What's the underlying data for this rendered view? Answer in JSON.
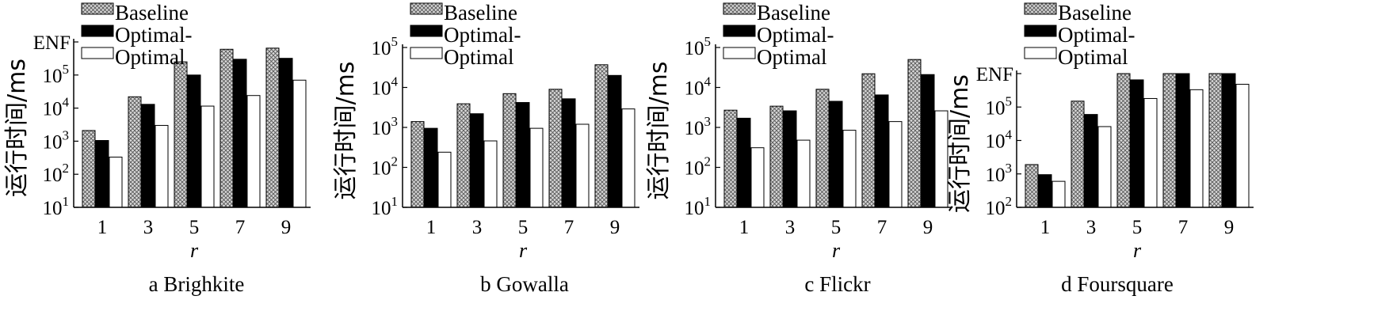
{
  "colors": {
    "baseline_fill": "#d9d9d9",
    "optimal_minus_fill": "#000000",
    "optimal_fill": "#ffffff",
    "axis": "#000000"
  },
  "legend_labels": [
    "Baseline",
    "Optimal-",
    "Optimal"
  ],
  "enf_label": "ENF",
  "chart_data": [
    {
      "type": "bar",
      "yscale": "log",
      "caption": "a Brighkite",
      "xlabel": "r",
      "ylabel": "运行时间/ms",
      "ylim": [
        10,
        1000000
      ],
      "yticks": [
        10,
        100,
        1000,
        10000,
        100000
      ],
      "ytick_labels": [
        [
          "10",
          "1"
        ],
        [
          "10",
          "2"
        ],
        [
          "10",
          "3"
        ],
        [
          "10",
          "4"
        ],
        [
          "10",
          "5"
        ]
      ],
      "enf_value": 1000000,
      "categories": [
        "1",
        "3",
        "5",
        "7",
        "9"
      ],
      "series": [
        {
          "name": "Baseline",
          "values": [
            2100,
            22000,
            250000,
            600000,
            650000
          ]
        },
        {
          "name": "Optimal-",
          "values": [
            1050,
            13000,
            100000,
            300000,
            320000
          ]
        },
        {
          "name": "Optimal",
          "values": [
            330,
            3000,
            11500,
            24000,
            70000
          ]
        }
      ],
      "grid": false,
      "legend": "top-left"
    },
    {
      "type": "bar",
      "yscale": "log",
      "caption": "b Gowalla",
      "xlabel": "r",
      "ylabel": "运行时间/ms",
      "ylim": [
        10,
        100000
      ],
      "yticks": [
        10,
        100,
        1000,
        10000,
        100000
      ],
      "ytick_labels": [
        [
          "10",
          "1"
        ],
        [
          "10",
          "2"
        ],
        [
          "10",
          "3"
        ],
        [
          "10",
          "4"
        ],
        [
          "10",
          "5"
        ]
      ],
      "categories": [
        "1",
        "3",
        "5",
        "7",
        "9"
      ],
      "series": [
        {
          "name": "Baseline",
          "values": [
            1400,
            3900,
            7000,
            9000,
            37000
          ]
        },
        {
          "name": "Optimal-",
          "values": [
            950,
            2200,
            4200,
            5200,
            20000
          ]
        },
        {
          "name": "Optimal",
          "values": [
            240,
            460,
            950,
            1200,
            2900
          ]
        }
      ],
      "grid": false,
      "legend": "top"
    },
    {
      "type": "bar",
      "yscale": "log",
      "caption": "c Flickr",
      "xlabel": "r",
      "ylabel": "运行时间/ms",
      "ylim": [
        10,
        100000
      ],
      "yticks": [
        10,
        100,
        1000,
        10000,
        100000
      ],
      "ytick_labels": [
        [
          "10",
          "1"
        ],
        [
          "10",
          "2"
        ],
        [
          "10",
          "3"
        ],
        [
          "10",
          "4"
        ],
        [
          "10",
          "5"
        ]
      ],
      "categories": [
        "1",
        "3",
        "5",
        "7",
        "9"
      ],
      "series": [
        {
          "name": "Baseline",
          "values": [
            2700,
            3400,
            9000,
            22000,
            50000
          ]
        },
        {
          "name": "Optimal-",
          "values": [
            1700,
            2600,
            4500,
            6500,
            21000
          ]
        },
        {
          "name": "Optimal",
          "values": [
            310,
            480,
            850,
            1400,
            2600
          ]
        }
      ],
      "grid": false,
      "legend": "top"
    },
    {
      "type": "bar",
      "yscale": "log",
      "caption": "d Foursquare",
      "xlabel": "r",
      "ylabel": "运行时间/ms",
      "ylim": [
        100,
        1000000
      ],
      "yticks": [
        100,
        1000,
        10000,
        100000
      ],
      "ytick_labels": [
        [
          "10",
          "2"
        ],
        [
          "10",
          "3"
        ],
        [
          "10",
          "4"
        ],
        [
          "10",
          "5"
        ]
      ],
      "enf_value": 1000000,
      "categories": [
        "1",
        "3",
        "5",
        "7",
        "9"
      ],
      "series": [
        {
          "name": "Baseline",
          "values": [
            1900,
            150000,
            1000000,
            1000000,
            1000000
          ]
        },
        {
          "name": "Optimal-",
          "values": [
            950,
            60000,
            650000,
            1000000,
            1000000
          ]
        },
        {
          "name": "Optimal",
          "values": [
            600,
            26000,
            180000,
            330000,
            480000
          ]
        }
      ],
      "grid": false,
      "legend": "top"
    }
  ]
}
